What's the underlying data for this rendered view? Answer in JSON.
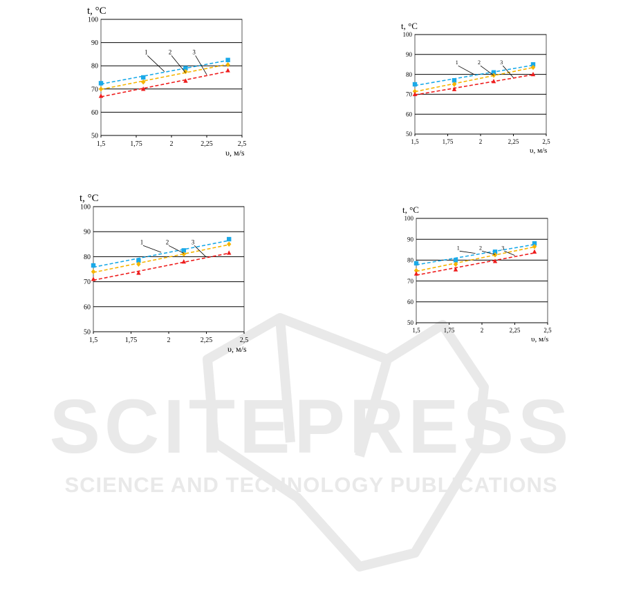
{
  "watermark": {
    "brand": "SCITEPRESS",
    "tagline": "SCIENCE AND TECHNOLOGY PUBLICATIONS"
  },
  "colors": {
    "series_1": "#1aa9e8",
    "series_2": "#f5b400",
    "series_3": "#ee1c1c",
    "gridline": "#000000",
    "watermark": "#e9e9e9"
  },
  "chart_data": [
    {
      "type": "line",
      "ylabel": "t, °C",
      "xlabel": "υ, м/s",
      "xlim": [
        1.5,
        2.5
      ],
      "ylim": [
        50,
        100
      ],
      "x_ticks": [
        "1,5",
        "1,75",
        "2",
        "2,25",
        "2,5"
      ],
      "y_ticks": [
        "50",
        "60",
        "70",
        "80",
        "90",
        "100"
      ],
      "grid": "horizontal",
      "curve_labels": [
        "1",
        "2",
        "3"
      ],
      "x": [
        1.5,
        1.8,
        2.1,
        2.4
      ],
      "series": [
        {
          "values": [
            72.5,
            75,
            79,
            82.5
          ],
          "marker": "square",
          "color": "#1aa9e8"
        },
        {
          "values": [
            70,
            73,
            77.5,
            80.5
          ],
          "marker": "diamond",
          "color": "#f5b400"
        },
        {
          "values": [
            67,
            70,
            73.5,
            78
          ],
          "marker": "triangle",
          "color": "#ee1c1c"
        }
      ]
    },
    {
      "type": "line",
      "ylabel": "t, °C",
      "xlabel": "υ, м/s",
      "xlim": [
        1.5,
        2.5
      ],
      "ylim": [
        50,
        100
      ],
      "x_ticks": [
        "1,5",
        "1,75",
        "2",
        "2,25",
        "2,5"
      ],
      "y_ticks": [
        "50",
        "60",
        "70",
        "80",
        "90",
        "100"
      ],
      "grid": "horizontal",
      "curve_labels": [
        "1",
        "2",
        "3"
      ],
      "x": [
        1.5,
        1.8,
        2.1,
        2.4
      ],
      "series": [
        {
          "values": [
            75,
            77,
            81,
            85
          ],
          "marker": "square",
          "color": "#1aa9e8"
        },
        {
          "values": [
            71.5,
            75,
            79.5,
            83.5
          ],
          "marker": "diamond",
          "color": "#f5b400"
        },
        {
          "values": [
            70,
            72.5,
            76.5,
            80
          ],
          "marker": "triangle",
          "color": "#ee1c1c"
        }
      ]
    },
    {
      "type": "line",
      "ylabel": "t, °C",
      "xlabel": "υ, м/s",
      "xlim": [
        1.5,
        2.5
      ],
      "ylim": [
        50,
        100
      ],
      "x_ticks": [
        "1,5",
        "1,75",
        "2",
        "2,25",
        "2,5"
      ],
      "y_ticks": [
        "50",
        "60",
        "70",
        "80",
        "90",
        "100"
      ],
      "grid": "horizontal",
      "curve_labels": [
        "1",
        "2",
        "3"
      ],
      "x": [
        1.5,
        1.8,
        2.1,
        2.4
      ],
      "series": [
        {
          "values": [
            76.5,
            78.5,
            82.5,
            87
          ],
          "marker": "square",
          "color": "#1aa9e8"
        },
        {
          "values": [
            74,
            77,
            81,
            85
          ],
          "marker": "diamond",
          "color": "#f5b400"
        },
        {
          "values": [
            71,
            73.5,
            78,
            81.5
          ],
          "marker": "triangle",
          "color": "#ee1c1c"
        }
      ]
    },
    {
      "type": "line",
      "ylabel": "t, °C",
      "xlabel": "υ, м/s",
      "xlim": [
        1.5,
        2.5
      ],
      "ylim": [
        50,
        100
      ],
      "x_ticks": [
        "1,5",
        "1,75",
        "2",
        "2,25",
        "2,5"
      ],
      "y_ticks": [
        "50",
        "60",
        "70",
        "80",
        "90",
        "100"
      ],
      "grid": "horizontal",
      "curve_labels": [
        "1",
        "2",
        "3"
      ],
      "x": [
        1.5,
        1.8,
        2.1,
        2.4
      ],
      "series": [
        {
          "values": [
            78.5,
            80,
            84,
            88
          ],
          "marker": "square",
          "color": "#1aa9e8"
        },
        {
          "values": [
            75,
            78,
            82.5,
            86.5
          ],
          "marker": "diamond",
          "color": "#f5b400"
        },
        {
          "values": [
            73.5,
            75.5,
            79.5,
            84
          ],
          "marker": "triangle",
          "color": "#ee1c1c"
        }
      ]
    }
  ]
}
